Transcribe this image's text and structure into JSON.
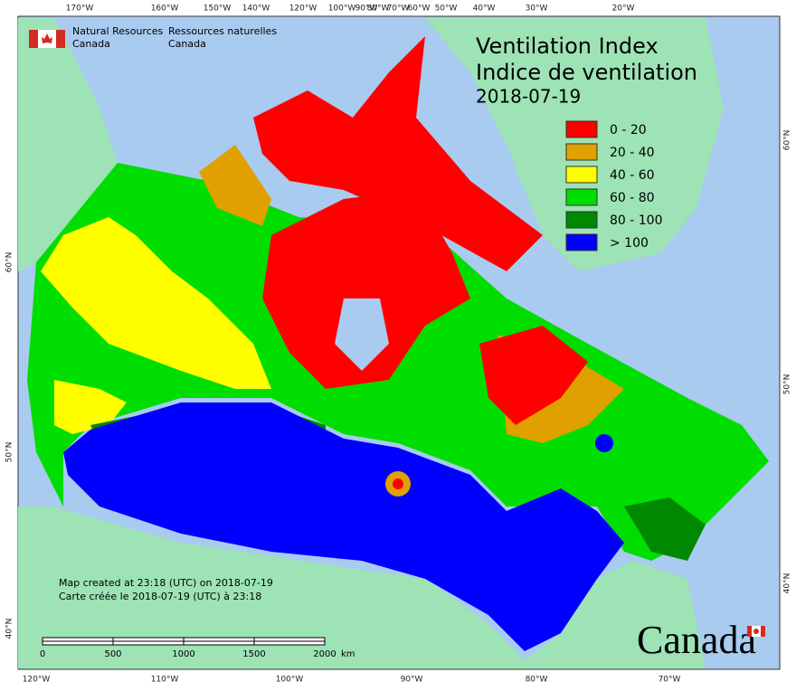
{
  "agency": {
    "en": [
      "Natural Resources",
      "Canada"
    ],
    "fr": [
      "Ressources naturelles",
      "Canada"
    ]
  },
  "title": {
    "line1": "Ventilation Index",
    "line2": "Indice de ventilation",
    "date": "2018-07-19"
  },
  "legend": [
    {
      "label": "0 - 20",
      "color": "#ff0000"
    },
    {
      "label": "20 - 40",
      "color": "#e0a000"
    },
    {
      "label": "40 - 60",
      "color": "#ffff00"
    },
    {
      "label": "60 - 80",
      "color": "#00dd00"
    },
    {
      "label": "80 - 100",
      "color": "#008800"
    },
    {
      "label": "> 100",
      "color": "#0000ff"
    }
  ],
  "graticule": {
    "top": [
      "170°W",
      "160°W",
      "150°W",
      "140°W",
      "120°W",
      "100°W",
      "90°W",
      "80°W",
      "70°W",
      "60°W",
      "50°W",
      "40°W",
      "30°W",
      "20°W"
    ],
    "bottom": [
      "120°W",
      "110°W",
      "100°W",
      "90°W",
      "80°W",
      "70°W"
    ],
    "left": [
      "60°N",
      "50°N",
      "40°N"
    ],
    "right": [
      "60°N",
      "50°N",
      "40°N"
    ]
  },
  "credits": [
    "Map created at 23:18 (UTC) on 2018-07-19",
    "Carte créée le 2018-07-19 (UTC) à 23:18"
  ],
  "scale_bar": {
    "labels": [
      "0",
      "500",
      "1000",
      "1500",
      "2000"
    ],
    "unit": "km"
  },
  "wordmark": "Canada"
}
